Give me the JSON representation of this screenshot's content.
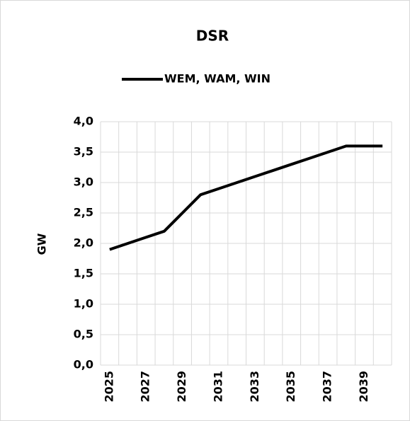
{
  "chart_data": {
    "type": "line",
    "title": "DSR",
    "y_label": "GW",
    "categories": [
      "2025",
      null,
      "2027",
      null,
      "2029",
      null,
      "2031",
      null,
      "2033",
      null,
      "2035",
      null,
      "2037",
      null,
      "2039",
      null
    ],
    "series": [
      {
        "name": "WEM, WAM, WIN",
        "color": "#000000",
        "values": [
          1.9,
          2.0,
          2.1,
          2.2,
          2.5,
          2.8,
          2.9,
          3.0,
          3.1,
          3.2,
          3.3,
          3.4,
          3.5,
          3.6,
          3.6,
          3.6
        ]
      }
    ],
    "ylim": [
      0,
      4
    ],
    "yticks": [
      {
        "value": 0,
        "label": "0,0"
      },
      {
        "value": 0.5,
        "label": "0,5"
      },
      {
        "value": 1,
        "label": "1,0"
      },
      {
        "value": 1.5,
        "label": "1,5"
      },
      {
        "value": 2,
        "label": "2,0"
      },
      {
        "value": 2.5,
        "label": "2,5"
      },
      {
        "value": 3,
        "label": "3,0"
      },
      {
        "value": 3.5,
        "label": "3,5"
      },
      {
        "value": 4,
        "label": "4,0"
      }
    ],
    "grid": true,
    "legend": "top"
  }
}
